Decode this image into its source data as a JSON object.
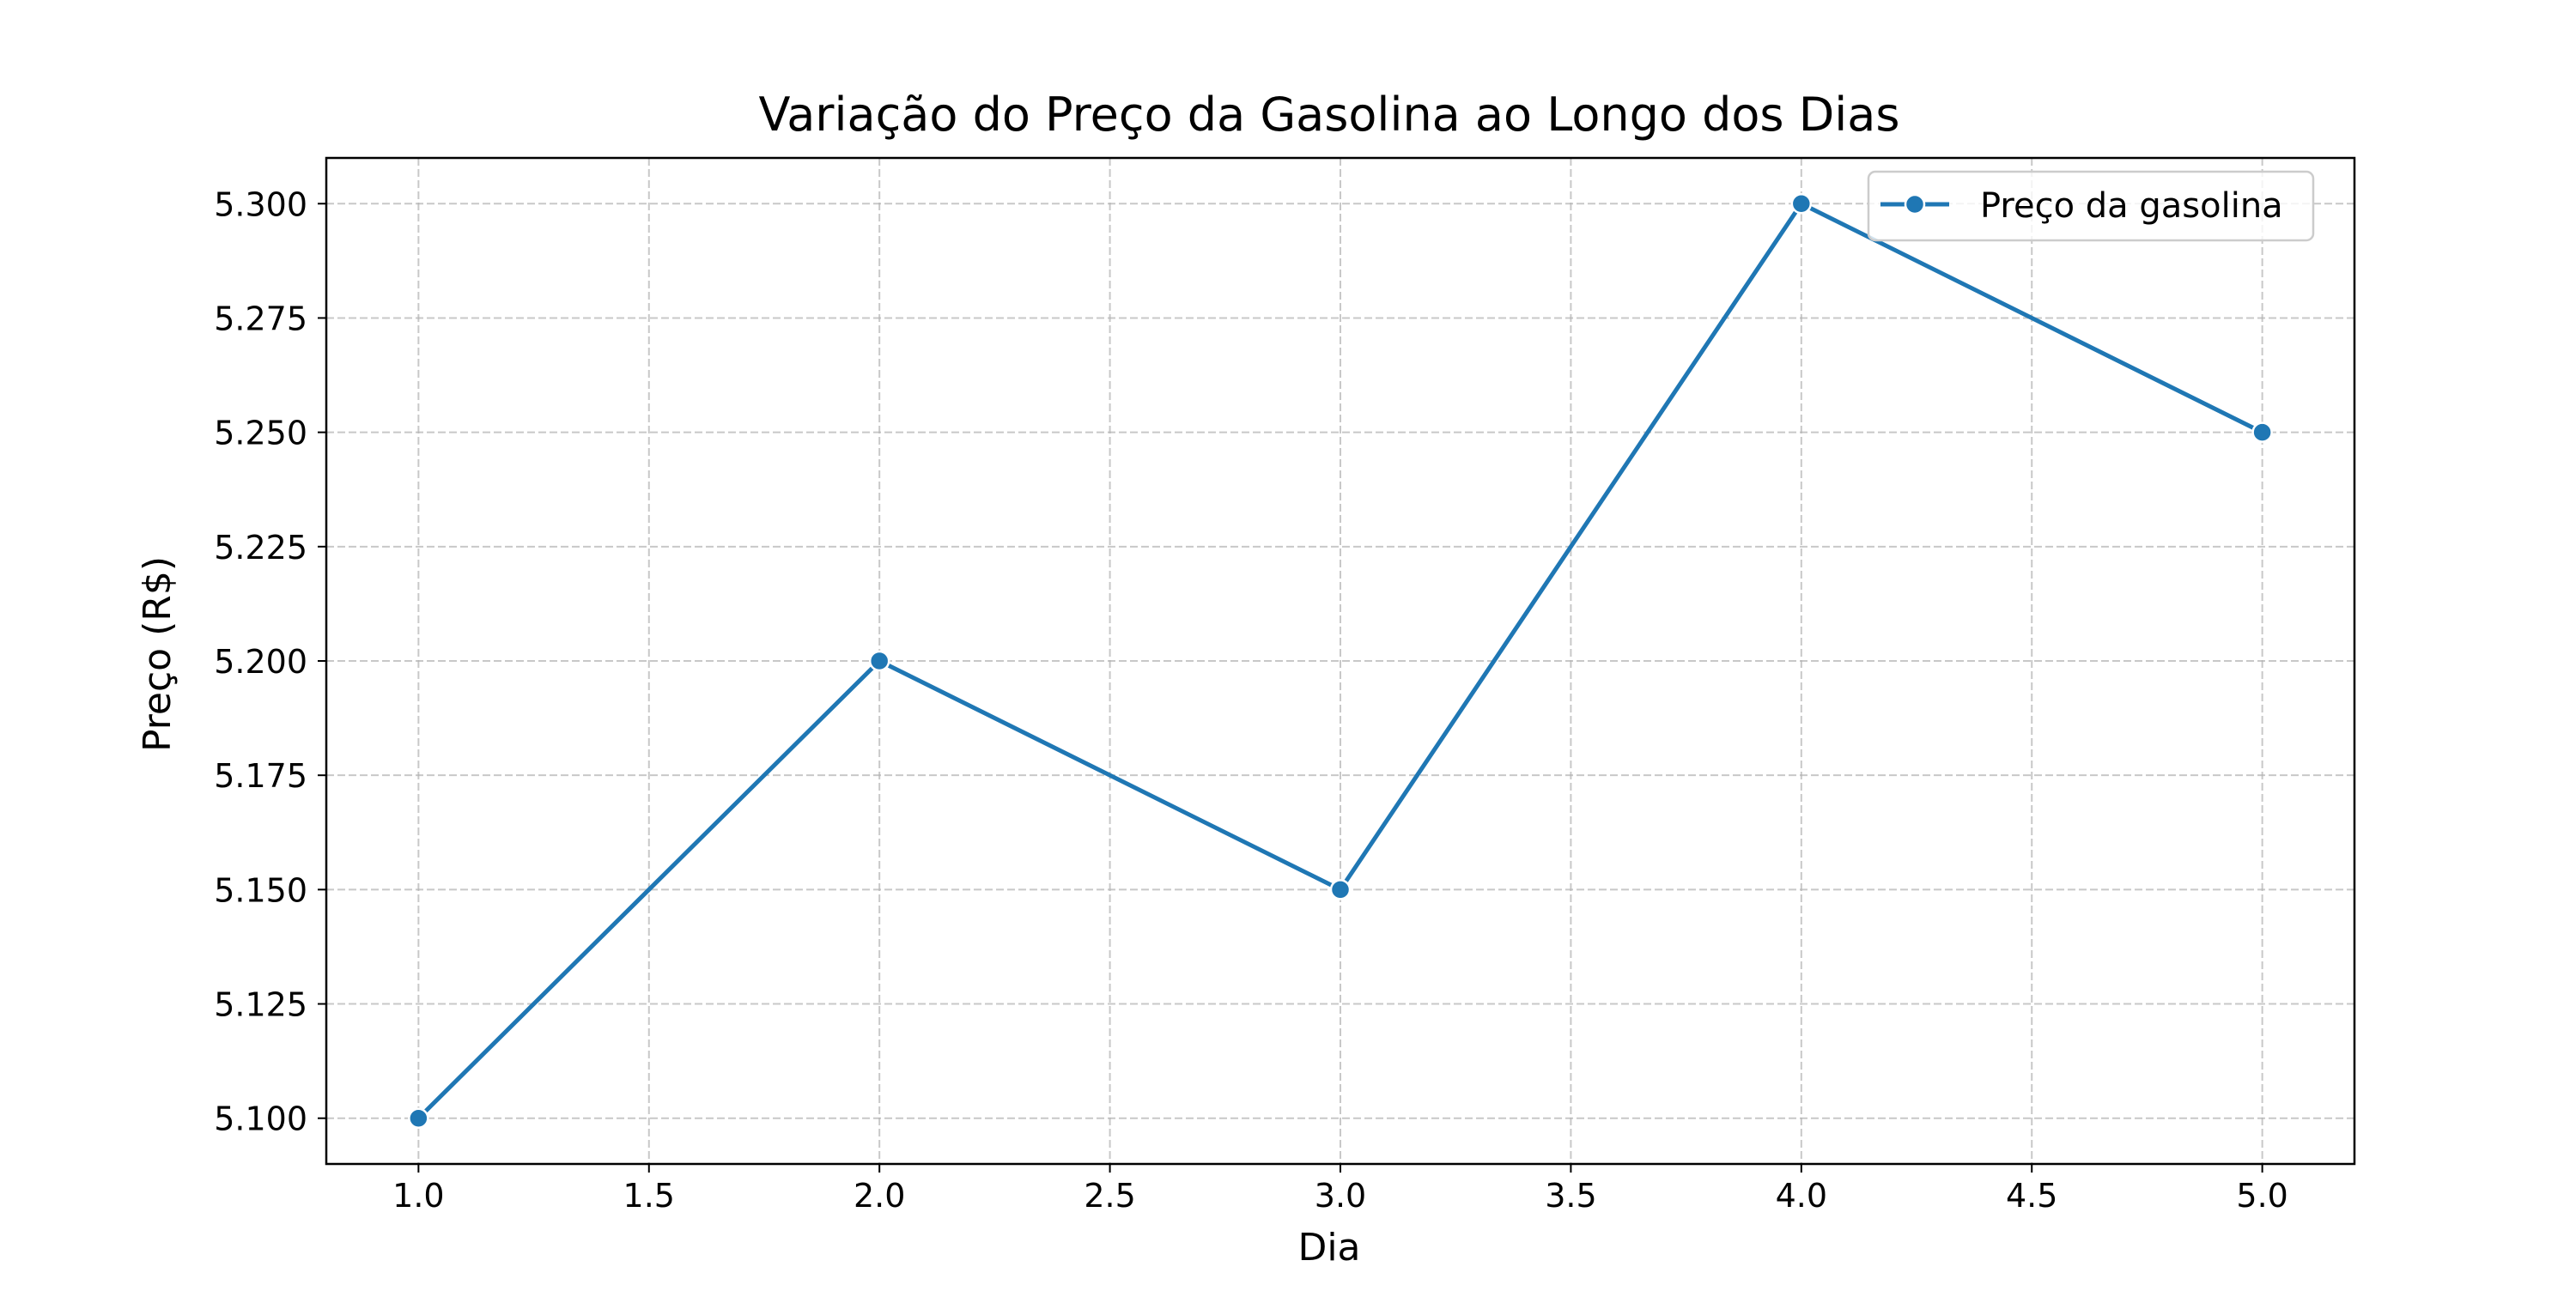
{
  "chart_data": {
    "type": "line",
    "title": "Variação do Preço da Gasolina ao Longo dos Dias",
    "xlabel": "Dia",
    "ylabel": "Preço (R$)",
    "x": [
      1.0,
      2.0,
      3.0,
      4.0,
      5.0
    ],
    "series": [
      {
        "name": "Preço da gasolina",
        "values": [
          5.1,
          5.2,
          5.15,
          5.3,
          5.25
        ],
        "color": "#1f77b4",
        "marker": "circle"
      }
    ],
    "xlim": [
      0.8,
      5.2
    ],
    "ylim": [
      5.09,
      5.31
    ],
    "x_ticks": [
      1.0,
      1.5,
      2.0,
      2.5,
      3.0,
      3.5,
      4.0,
      4.5,
      5.0
    ],
    "x_tick_labels": [
      "1.0",
      "1.5",
      "2.0",
      "2.5",
      "3.0",
      "3.5",
      "4.0",
      "4.5",
      "5.0"
    ],
    "y_ticks": [
      5.1,
      5.125,
      5.15,
      5.175,
      5.2,
      5.225,
      5.25,
      5.275,
      5.3
    ],
    "y_tick_labels": [
      "5.100",
      "5.125",
      "5.150",
      "5.175",
      "5.200",
      "5.225",
      "5.250",
      "5.275",
      "5.300"
    ],
    "grid": true,
    "grid_style": "dashed",
    "legend_position": "top-right"
  }
}
